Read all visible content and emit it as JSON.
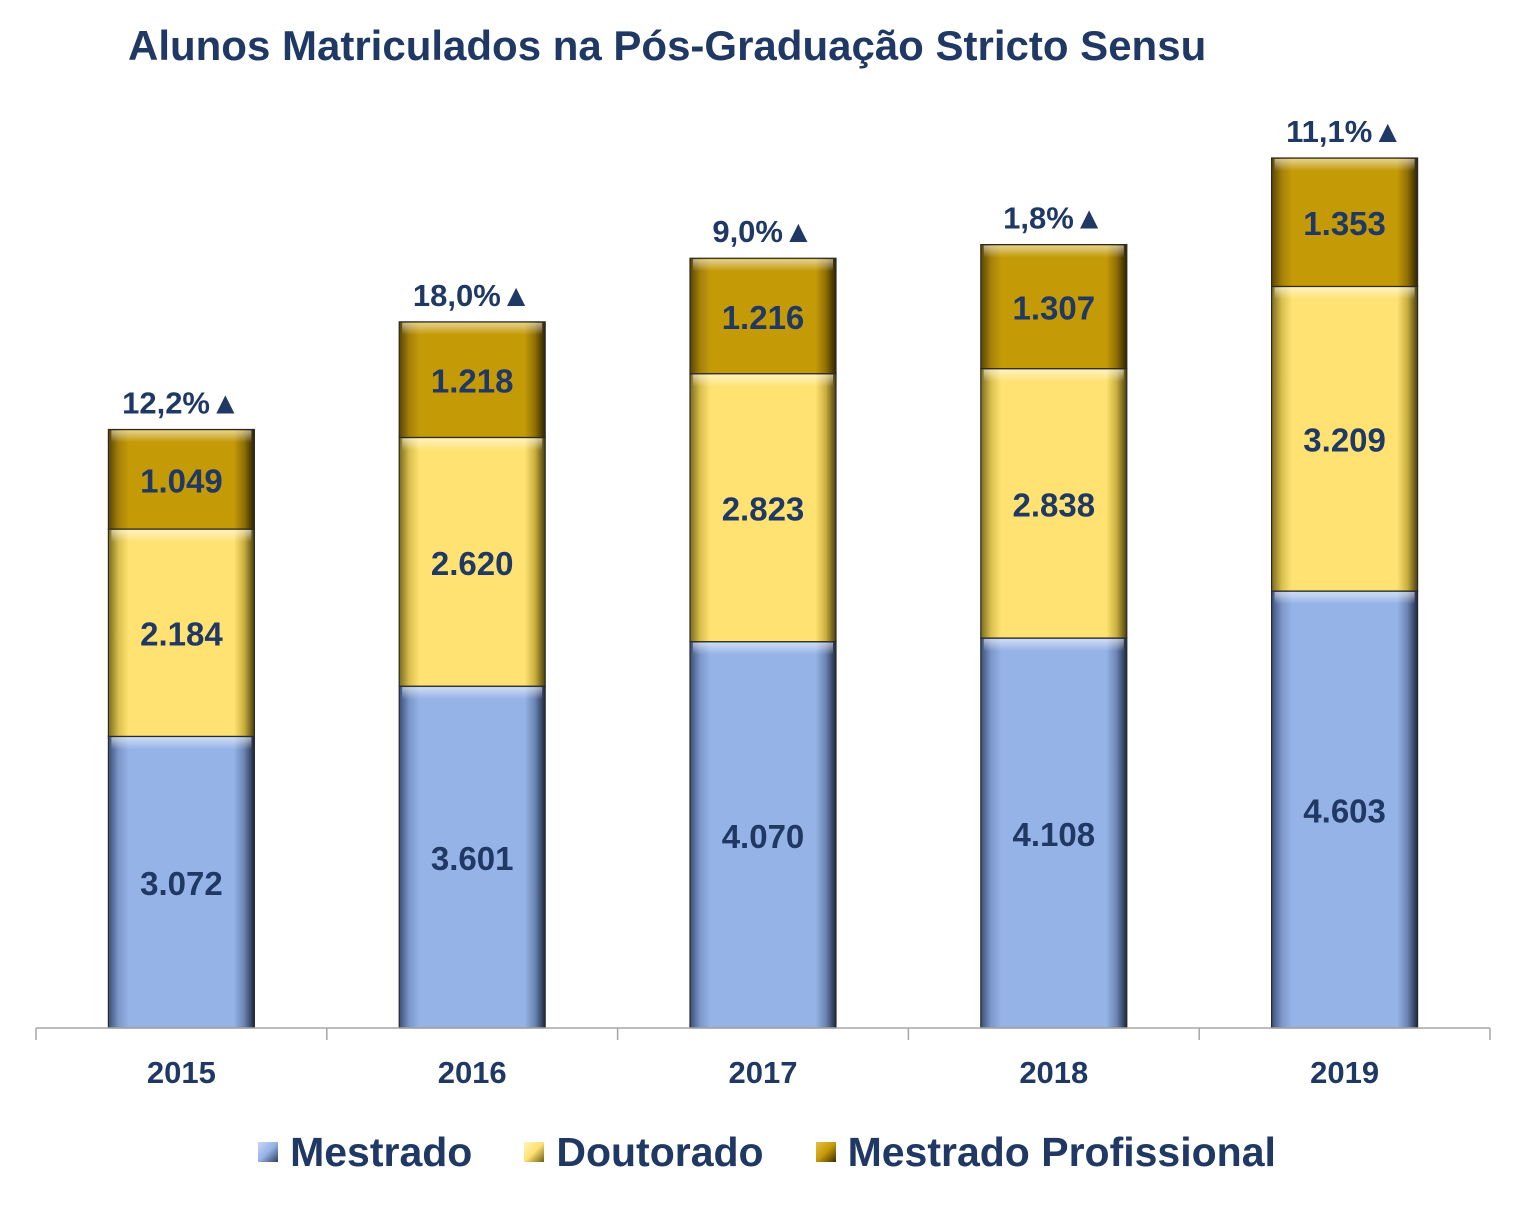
{
  "chart_data": {
    "type": "bar",
    "stacked": true,
    "title": "Alunos Matriculados na Pós-Graduação Stricto Sensu",
    "categories": [
      "2015",
      "2016",
      "2017",
      "2018",
      "2019"
    ],
    "series": [
      {
        "name": "Mestrado",
        "values": [
          3072,
          3601,
          4070,
          4108,
          4603
        ],
        "labels": [
          "3.072",
          "3.601",
          "4.070",
          "4.108",
          "4.603"
        ],
        "color": "#95b3e7"
      },
      {
        "name": "Doutorado",
        "values": [
          2184,
          2620,
          2823,
          2838,
          3209
        ],
        "labels": [
          "2.184",
          "2.620",
          "2.823",
          "2.838",
          "3.209"
        ],
        "color": "#ffe272"
      },
      {
        "name": "Mestrado Profissional",
        "values": [
          1049,
          1218,
          1216,
          1307,
          1353
        ],
        "labels": [
          "1.049",
          "1.218",
          "1.216",
          "1.307",
          "1.353"
        ],
        "color": "#c49a07"
      }
    ],
    "growth_labels": [
      "12,2%▲",
      "18,0%▲",
      "9,0%▲",
      "1,8%▲",
      "11,1%▲"
    ],
    "ylim": [
      0,
      9165
    ],
    "grid": false,
    "legend_position": "bottom"
  }
}
